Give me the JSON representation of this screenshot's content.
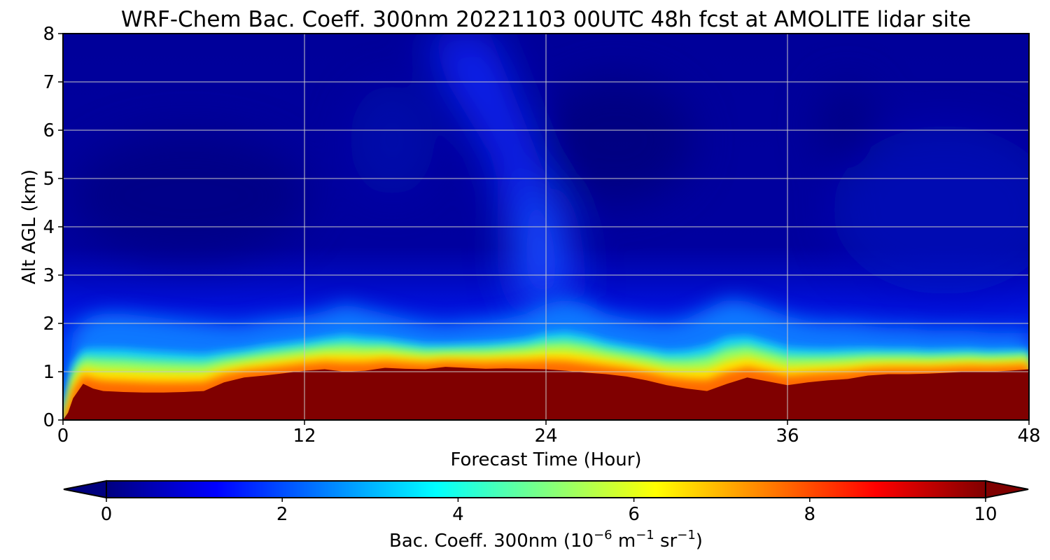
{
  "chart_data": {
    "type": "heatmap",
    "subtype": "filled-contour time-height section",
    "title": "WRF-Chem Bac. Coeff. 300nm  20221103 00UTC 48h fcst at AMOLITE lidar site",
    "xlabel": "Forecast Time (Hour)",
    "ylabel": "Alt AGL (km)",
    "xlim": [
      0,
      48
    ],
    "ylim": [
      0,
      8
    ],
    "xticks": [
      0,
      12,
      24,
      36,
      48
    ],
    "yticks": [
      0,
      1,
      2,
      3,
      4,
      5,
      6,
      7,
      8
    ],
    "grid": true,
    "colormap": "jet",
    "colorbar": {
      "label_main": "Bac. Coeff. 300nm  (10",
      "label_exp1": "−6",
      "label_mid": " m",
      "label_exp2": "−1",
      "label_mid2": " sr",
      "label_exp3": "−1",
      "label_end": ")",
      "range": [
        0,
        10
      ],
      "ticks": [
        0,
        2,
        4,
        6,
        8,
        10
      ],
      "extend": "both",
      "orientation": "horizontal",
      "position": "bottom"
    },
    "series": [
      {
        "name": "",
        "description_values": "approximate altitude (km) of the saturated (>=10) aerosol layer top",
        "x": [
          0,
          0.25,
          0.5,
          1,
          1.5,
          2,
          3,
          4,
          5,
          6,
          7,
          8,
          9,
          10,
          11,
          12,
          13,
          14,
          15,
          16,
          17,
          18,
          19,
          20,
          21,
          22,
          23,
          24,
          25,
          26,
          27,
          28,
          29,
          30,
          31,
          32,
          33,
          34,
          35,
          36,
          37,
          38,
          39,
          40,
          41,
          42,
          43,
          44,
          45,
          46,
          47,
          48
        ],
        "values": [
          0,
          0.15,
          0.45,
          0.75,
          0.65,
          0.6,
          0.58,
          0.57,
          0.57,
          0.58,
          0.6,
          0.78,
          0.88,
          0.92,
          0.97,
          1.02,
          1.05,
          1.0,
          1.02,
          1.08,
          1.06,
          1.05,
          1.1,
          1.08,
          1.06,
          1.07,
          1.06,
          1.05,
          1.02,
          0.98,
          0.95,
          0.9,
          0.82,
          0.72,
          0.65,
          0.6,
          0.75,
          0.88,
          0.8,
          0.72,
          0.78,
          0.82,
          0.85,
          0.92,
          0.95,
          0.95,
          0.96,
          0.98,
          1.0,
          1.0,
          1.02,
          1.05
        ]
      },
      {
        "name": "",
        "description_values": "approximate altitude (km) of the boundary-layer aerosol top (~value 2)",
        "x": [
          0,
          0.25,
          0.5,
          1,
          1.5,
          2,
          3,
          4,
          5,
          6,
          7,
          8,
          9,
          10,
          11,
          12,
          13,
          14,
          15,
          16,
          17,
          18,
          19,
          20,
          21,
          22,
          23,
          24,
          25,
          26,
          27,
          28,
          29,
          30,
          31,
          32,
          33,
          34,
          35,
          36,
          37,
          38,
          39,
          40,
          41,
          42,
          43,
          44,
          45,
          46,
          47,
          48
        ],
        "values": [
          0.2,
          1.0,
          1.8,
          2.05,
          2.15,
          2.2,
          2.2,
          2.15,
          2.1,
          2.05,
          2.0,
          1.95,
          1.95,
          2.05,
          2.1,
          2.15,
          2.25,
          2.4,
          2.3,
          2.2,
          2.1,
          2.0,
          1.95,
          2.0,
          2.05,
          2.1,
          2.2,
          2.4,
          2.5,
          2.4,
          2.2,
          2.1,
          2.05,
          2.0,
          2.1,
          2.3,
          2.5,
          2.45,
          2.3,
          2.15,
          2.05,
          2.0,
          2.0,
          1.95,
          1.9,
          1.9,
          1.85,
          1.85,
          1.85,
          1.8,
          1.8,
          1.8
        ]
      }
    ]
  }
}
